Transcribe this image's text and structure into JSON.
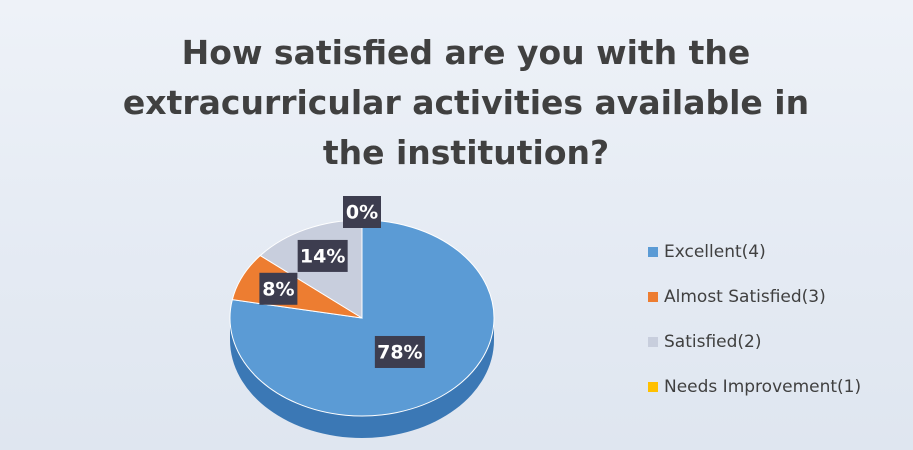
{
  "chart_data": {
    "type": "pie",
    "title": "How satisfied are you with the extracurricular activities available in the institution?",
    "categories": [
      "Excellent(4)",
      "Almost Satisfied(3)",
      "Satisfied(2)",
      "Needs Improvement(1)"
    ],
    "values": [
      78,
      8,
      14,
      0
    ],
    "value_labels": [
      "78%",
      "8%",
      "14%",
      "0%"
    ],
    "colors": [
      "#5b9bd5",
      "#ed7d31",
      "#c8cedd",
      "#ffc000"
    ],
    "legend": "right"
  }
}
